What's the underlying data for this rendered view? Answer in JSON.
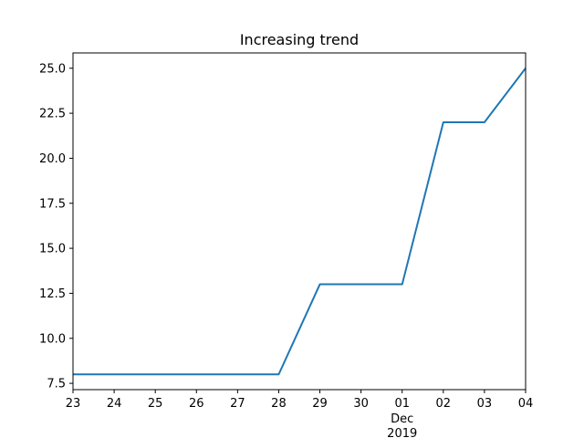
{
  "chart_data": {
    "type": "line",
    "title": "Increasing trend",
    "xlabel": "",
    "ylabel": "",
    "x": [
      "2019-11-23",
      "2019-11-24",
      "2019-11-25",
      "2019-11-26",
      "2019-11-27",
      "2019-11-28",
      "2019-11-29",
      "2019-11-30",
      "2019-12-01",
      "2019-12-02",
      "2019-12-03",
      "2019-12-04"
    ],
    "series": [
      {
        "values": [
          8,
          8,
          8,
          8,
          8,
          8,
          13,
          13,
          13,
          22,
          22,
          25
        ]
      }
    ],
    "x_tick_labels": [
      "23",
      "24",
      "25",
      "26",
      "27",
      "28",
      "29",
      "30",
      "01",
      "02",
      "03",
      "04"
    ],
    "x_tick_sublabel": {
      "tick_index": 8,
      "month": "Dec",
      "year": "2019"
    },
    "y_ticks": [
      7.5,
      10.0,
      12.5,
      15.0,
      17.5,
      20.0,
      22.5,
      25.0
    ],
    "y_tick_labels": [
      "7.5",
      "10.0",
      "12.5",
      "15.0",
      "17.5",
      "20.0",
      "22.5",
      "25.0"
    ],
    "ylim": [
      7.15,
      25.85
    ],
    "grid": false,
    "legend": "none",
    "line_color": "#1f77b4"
  }
}
